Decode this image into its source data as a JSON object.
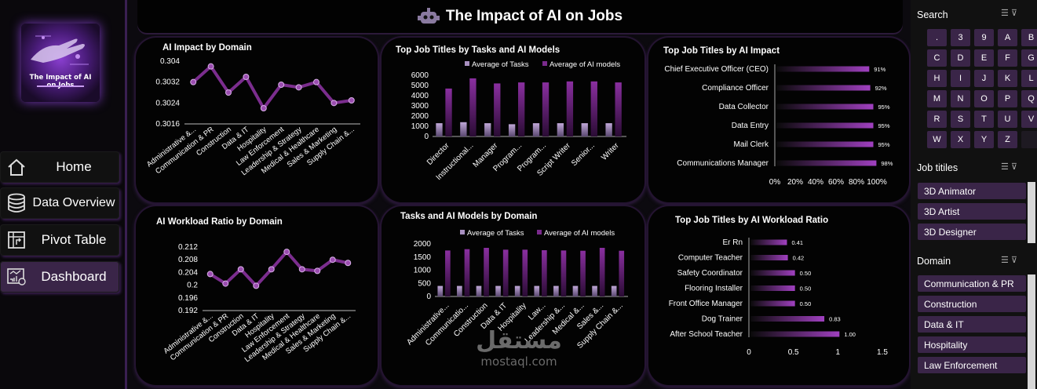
{
  "header": {
    "title": "The Impact of AI on Jobs",
    "icon": "robot-icon"
  },
  "logo": {
    "text": "The Impact of AI on Jobs"
  },
  "nav": [
    {
      "label": "Home",
      "icon": "home-icon"
    },
    {
      "label": "Data Overview",
      "icon": "database-icon"
    },
    {
      "label": "Pivot Table",
      "icon": "pivot-table-icon"
    },
    {
      "label": "Dashboard",
      "icon": "dashboard-icon"
    }
  ],
  "accent": "#8a3fb0",
  "chart_data": [
    {
      "id": "impact_domain",
      "type": "line",
      "title": "AI Impact by Domain",
      "categories": [
        "Administrative &...",
        "Communication & PR",
        "Construction",
        "Data & IT",
        "Hospitality",
        "Law Enforcement",
        "Leadership & Strategy",
        "Medical & Healthcare",
        "Sales & Marketing",
        "Supply Chain &..."
      ],
      "values": [
        0.3032,
        0.3038,
        0.3028,
        0.3034,
        0.3022,
        0.3031,
        0.303,
        0.3032,
        0.3024,
        0.3025
      ],
      "ylim": [
        0.3016,
        0.304
      ],
      "yticks": [
        "0.304",
        "0.3032",
        "0.3024",
        "0.3016"
      ]
    },
    {
      "id": "tasks_models_title",
      "type": "bar",
      "title": "Top Job Titles by Tasks and AI Models",
      "categories": [
        "Director",
        "Instructional...",
        "Manager",
        "Program...",
        "Program...",
        "Script Writer",
        "Senior...",
        "Writer"
      ],
      "series": [
        {
          "name": "Average of Tasks",
          "values": [
            1300,
            1400,
            1300,
            1200,
            1300,
            1300,
            1300,
            1300
          ]
        },
        {
          "name": "Average of AI models",
          "values": [
            4700,
            5700,
            5200,
            5300,
            5300,
            5400,
            5400,
            5300
          ]
        }
      ],
      "ylim": [
        0,
        6000
      ],
      "yticks": [
        "6000",
        "5000",
        "4000",
        "3000",
        "2000",
        "1000",
        "0"
      ]
    },
    {
      "id": "impact_title",
      "type": "bar",
      "title": "Top Job Titles by AI Impact",
      "categories": [
        "Chief Executive Officer (CEO)",
        "Compliance Officer",
        "Data Collector",
        "Data Entry",
        "Mail Clerk",
        "Communications Manager"
      ],
      "values": [
        91,
        92,
        95,
        95,
        95,
        98
      ],
      "labels": [
        "91%",
        "92%",
        "95%",
        "95%",
        "95%",
        "98%"
      ],
      "xticks": [
        "0%",
        "20%",
        "40%",
        "60%",
        "80%",
        "100%"
      ],
      "xlim": [
        0,
        100
      ]
    },
    {
      "id": "workload_domain",
      "type": "line",
      "title": "AI Workload Ratio by Domain",
      "categories": [
        "Administrative &...",
        "Communication & PR",
        "Construction",
        "Data & IT",
        "Hospitality",
        "Law Enforcement",
        "Leadership & Strategy",
        "Medical & Healthcare",
        "Sales & Marketing",
        "Supply Chain &..."
      ],
      "values": [
        0.2035,
        0.2005,
        0.205,
        0.1998,
        0.205,
        0.2105,
        0.205,
        0.2045,
        0.208,
        0.207
      ],
      "ylim": [
        0.192,
        0.212
      ],
      "yticks": [
        "0.212",
        "0.208",
        "0.204",
        "0.2",
        "0.196",
        "0.192"
      ]
    },
    {
      "id": "tasks_models_domain",
      "type": "bar",
      "title": "Tasks and AI Models by Domain",
      "categories": [
        "Administrative...",
        "Communicatio...",
        "Construction",
        "Data & IT",
        "Hospitality",
        "Law...",
        "Leadership &...",
        "Medical &...",
        "Sales &...",
        "Supply Chain &..."
      ],
      "series": [
        {
          "name": "Average of Tasks",
          "values": [
            400,
            400,
            400,
            400,
            400,
            400,
            400,
            400,
            400,
            400
          ]
        },
        {
          "name": "Average of AI models",
          "values": [
            1750,
            1800,
            1850,
            1780,
            1780,
            1760,
            1750,
            1740,
            1850,
            1740
          ]
        }
      ],
      "ylim": [
        0,
        2000
      ],
      "yticks": [
        "2000",
        "1500",
        "1000",
        "500",
        "0"
      ]
    },
    {
      "id": "workload_title",
      "type": "bar",
      "title": "Top Job Titles by AI Workload Ratio",
      "categories": [
        "Er Rn",
        "Computer Teacher",
        "Safety Coordinator",
        "Flooring Installer",
        "Front Office Manager",
        "Dog Trainer",
        "After School Teacher"
      ],
      "values": [
        0.41,
        0.42,
        0.5,
        0.5,
        0.5,
        0.83,
        1.0
      ],
      "labels": [
        "0.41",
        "0.42",
        "0.50",
        "0.50",
        "0.50",
        "0.83",
        "1.00"
      ],
      "xticks": [
        "0",
        "0.5",
        "1",
        "1.5"
      ],
      "xlim": [
        0,
        1.5
      ]
    }
  ],
  "slicers": {
    "search": {
      "title": "Search",
      "keys": [
        ".",
        "3",
        "9",
        "A",
        "B",
        "C",
        "D",
        "E",
        "F",
        "G",
        "H",
        "I",
        "J",
        "K",
        "L",
        "M",
        "N",
        "O",
        "P",
        "Q",
        "R",
        "S",
        "T",
        "U",
        "V",
        "W",
        "X",
        "Y",
        "Z"
      ]
    },
    "job_titles": {
      "title": "Job titiles",
      "items": [
        "3D Animator",
        "3D Artist",
        "3D Designer"
      ]
    },
    "domain": {
      "title": "Domain",
      "items": [
        "Communication & PR",
        "Construction",
        "Data & IT",
        "Hospitality",
        "Law Enforcement"
      ]
    }
  },
  "watermark": {
    "arabic": "مستقل",
    "latin": "mostaql.com"
  }
}
